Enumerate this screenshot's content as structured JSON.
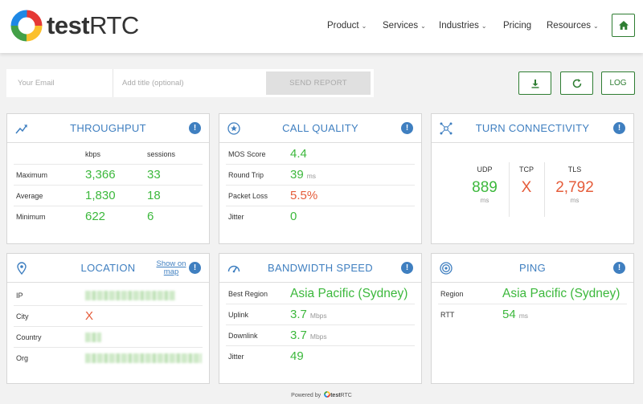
{
  "brand": {
    "logo_text_bold": "test",
    "logo_text_rest": "RTC",
    "colors": {
      "accent_blue": "#3f7fc0",
      "good_green": "#3cb83c",
      "bad_red": "#e55c3a",
      "button_green": "#2e7d32"
    }
  },
  "nav": {
    "items": [
      {
        "label": "Product",
        "has_dropdown": true
      },
      {
        "label": "Services",
        "has_dropdown": true
      },
      {
        "label": "Industries",
        "has_dropdown": true
      },
      {
        "label": "Pricing",
        "has_dropdown": false
      },
      {
        "label": "Resources",
        "has_dropdown": true
      }
    ],
    "home_icon": "home-icon"
  },
  "report": {
    "email_placeholder": "Your Email",
    "title_placeholder": "Add title (optional)",
    "send_label": "SEND REPORT"
  },
  "actions": {
    "download_icon": "download-icon",
    "refresh_icon": "refresh-icon",
    "log_label": "LOG"
  },
  "throughput": {
    "title": "THROUGHPUT",
    "icon": "trend-up-icon",
    "col_kbps": "kbps",
    "col_sessions": "sessions",
    "rows": [
      {
        "label": "Maximum",
        "kbps": "3,366",
        "sessions": "33"
      },
      {
        "label": "Average",
        "kbps": "1,830",
        "sessions": "18"
      },
      {
        "label": "Minimum",
        "kbps": "622",
        "sessions": "6"
      }
    ]
  },
  "call_quality": {
    "title": "CALL QUALITY",
    "icon": "star-circle-icon",
    "rows": [
      {
        "label": "MOS Score",
        "value": "4.4",
        "unit": "",
        "status": "good"
      },
      {
        "label": "Round Trip",
        "value": "39",
        "unit": "ms",
        "status": "good"
      },
      {
        "label": "Packet Loss",
        "value": "5.5%",
        "unit": "",
        "status": "bad"
      },
      {
        "label": "Jitter",
        "value": "0",
        "unit": "",
        "status": "good"
      }
    ]
  },
  "turn": {
    "title": "TURN CONNECTIVITY",
    "icon": "network-nodes-icon",
    "cols": [
      {
        "label": "UDP",
        "value": "889",
        "unit": "ms",
        "status": "good"
      },
      {
        "label": "TCP",
        "value": "X",
        "unit": "",
        "status": "bad"
      },
      {
        "label": "TLS",
        "value": "2,792",
        "unit": "ms",
        "status": "bad"
      }
    ]
  },
  "location": {
    "title": "LOCATION",
    "icon": "map-pin-icon",
    "show_map": "Show on map",
    "rows": [
      {
        "label": "IP",
        "value": "",
        "redacted": true
      },
      {
        "label": "City",
        "value": "X",
        "redacted": false
      },
      {
        "label": "Country",
        "value": "",
        "redacted": true
      },
      {
        "label": "Org",
        "value": "",
        "redacted": true
      }
    ]
  },
  "bandwidth": {
    "title": "BANDWIDTH SPEED",
    "icon": "speedometer-icon",
    "rows": [
      {
        "label": "Best Region",
        "value": "Asia Pacific (Sydney)",
        "unit": ""
      },
      {
        "label": "Uplink",
        "value": "3.7",
        "unit": "Mbps"
      },
      {
        "label": "Downlink",
        "value": "3.7",
        "unit": "Mbps"
      },
      {
        "label": "Jitter",
        "value": "49",
        "unit": ""
      }
    ]
  },
  "ping": {
    "title": "PING",
    "icon": "target-icon",
    "rows": [
      {
        "label": "Region",
        "value": "Asia Pacific (Sydney)",
        "unit": ""
      },
      {
        "label": "RTT",
        "value": "54",
        "unit": "ms"
      }
    ]
  },
  "footer": {
    "powered_by": "Powered by",
    "brand_bold": "test",
    "brand_rest": "RTC"
  }
}
